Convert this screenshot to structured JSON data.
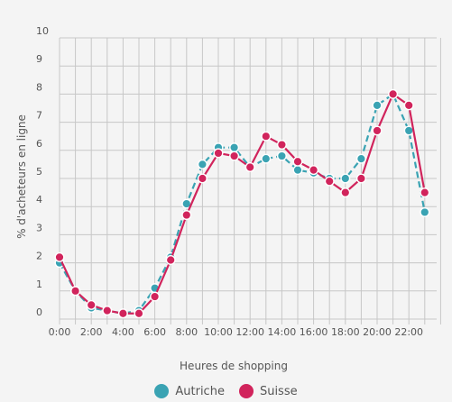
{
  "chart_data": {
    "type": "line",
    "xlabel": "Heures de shopping",
    "ylabel": "% d'acheteurs en ligne",
    "ylim": [
      0,
      10
    ],
    "yticks": [
      "0",
      "1",
      "2",
      "3",
      "4",
      "5",
      "6",
      "7",
      "8",
      "9",
      "10"
    ],
    "xticks": [
      "0:00",
      "2:00",
      "4:00",
      "6:00",
      "8:00",
      "10:00",
      "12:00",
      "14:00",
      "16:00",
      "18:00",
      "20:00",
      "22:00"
    ],
    "x": [
      0,
      1,
      2,
      3,
      4,
      5,
      6,
      7,
      8,
      9,
      10,
      11,
      12,
      13,
      14,
      15,
      16,
      17,
      18,
      19,
      20,
      21,
      22,
      23
    ],
    "grid": true,
    "legend": "bottom",
    "series": [
      {
        "name": "Autriche",
        "color": "#3aa3b3",
        "dashed": true,
        "values": [
          2.0,
          1.0,
          0.4,
          0.3,
          0.2,
          0.3,
          1.1,
          2.2,
          4.1,
          5.5,
          6.1,
          6.1,
          5.4,
          5.7,
          5.8,
          5.3,
          5.2,
          5.0,
          5.0,
          5.7,
          7.6,
          8.0,
          6.7,
          3.8
        ]
      },
      {
        "name": "Suisse",
        "color": "#d1245c",
        "dashed": false,
        "values": [
          2.2,
          1.0,
          0.5,
          0.3,
          0.2,
          0.2,
          0.8,
          2.1,
          3.7,
          5.0,
          5.9,
          5.8,
          5.4,
          6.5,
          6.2,
          5.6,
          5.3,
          4.9,
          4.5,
          5.0,
          6.7,
          8.0,
          7.6,
          4.5
        ]
      }
    ]
  }
}
